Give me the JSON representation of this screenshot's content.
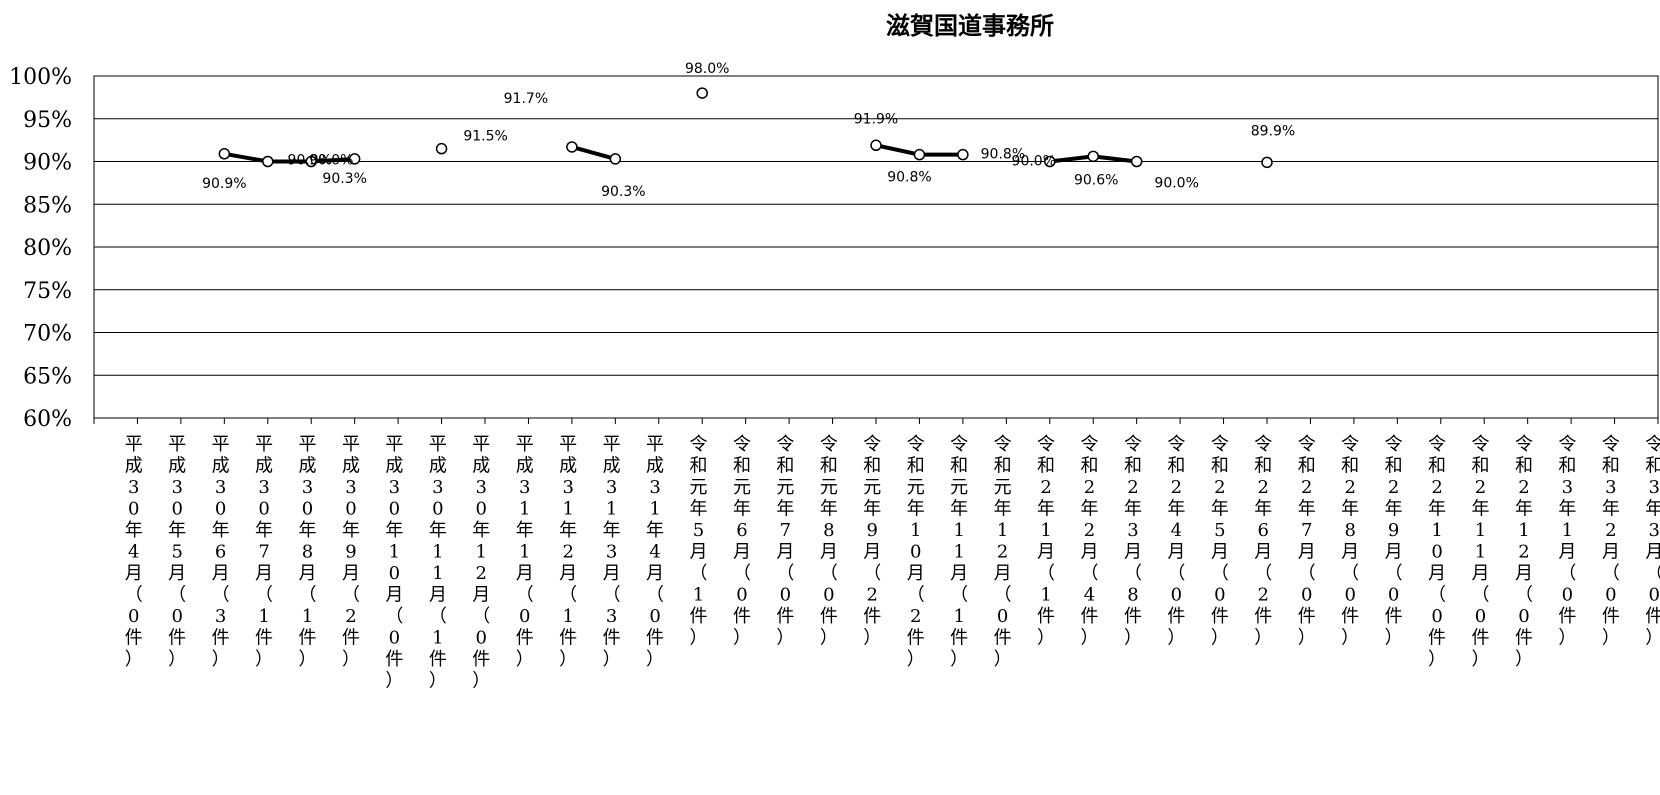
{
  "chart_data": {
    "type": "line",
    "title": "滋賀国道事務所",
    "xlabel": "",
    "ylabel": "",
    "ylim": [
      60,
      100
    ],
    "yticks": [
      "60%",
      "65%",
      "70%",
      "75%",
      "80%",
      "85%",
      "90%",
      "95%",
      "100%"
    ],
    "grid": true,
    "legend": "none",
    "categories": [
      "平成30年4月（0件）",
      "平成30年5月（0件）",
      "平成30年6月（3件）",
      "平成30年7月（1件）",
      "平成30年8月（1件）",
      "平成30年9月（2件）",
      "平成30年10月（0件）",
      "平成30年11月（1件）",
      "平成30年12月（0件）",
      "平成31年1月（0件）",
      "平成31年2月（1件）",
      "平成31年3月（3件）",
      "平成31年4月（0件）",
      "令和元年5月（1件）",
      "令和元年6月（0件）",
      "令和元年7月（0件）",
      "令和元年8月（0件）",
      "令和元年9月（2件）",
      "令和元年10月（2件）",
      "令和元年11月（1件）",
      "令和元年12月（0件）",
      "令和2年1月（1件）",
      "令和2年2月（4件）",
      "令和2年3月（8件）",
      "令和2年4月（0件）",
      "令和2年5月（0件）",
      "令和2年6月（2件）",
      "令和2年7月（0件）",
      "令和2年8月（0件）",
      "令和2年9月（0件）",
      "令和2年10月（0件）",
      "令和2年11月（0件）",
      "令和2年12月（0件）",
      "令和3年1月（0件）",
      "令和3年2月（0件）",
      "令和3年3月（0件）"
    ],
    "values": [
      null,
      null,
      90.9,
      90.0,
      90.0,
      90.3,
      null,
      91.5,
      null,
      null,
      91.7,
      90.3,
      null,
      98.0,
      null,
      null,
      null,
      91.9,
      90.8,
      90.8,
      null,
      90.0,
      90.6,
      90.0,
      null,
      null,
      89.9,
      null,
      null,
      null,
      null,
      null,
      null,
      null,
      null,
      null
    ],
    "value_labels": [
      null,
      null,
      "90.9%",
      "90.0%",
      "90.0%",
      "90.3%",
      null,
      "91.5%",
      null,
      null,
      "91.7%",
      "90.3%",
      null,
      "98.0%",
      null,
      null,
      null,
      "91.9%",
      "90.8%",
      "90.8%",
      null,
      "90.0%",
      "90.6%",
      "90.0%",
      null,
      null,
      "89.9%",
      null,
      null,
      null,
      null,
      null,
      null,
      null,
      null,
      null
    ]
  }
}
